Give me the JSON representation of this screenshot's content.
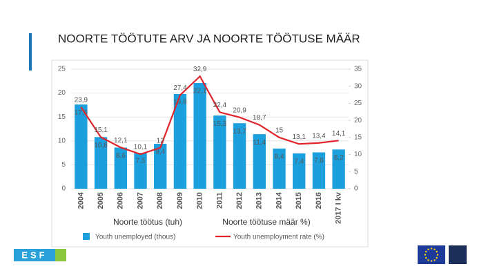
{
  "title": "NOORTE TÖÖTUTE ARV JA NOORTE TÖÖTUSE MÄÄR",
  "overlay_labels": [
    "Noorte töötus (tuh)",
    "Noorte töötuse määr %)"
  ],
  "logo_text": "ESF",
  "chart_data": {
    "type": "bar-line",
    "categories": [
      "2004",
      "2005",
      "2006",
      "2007",
      "2008",
      "2009",
      "2010",
      "2011",
      "2012",
      "2013",
      "2014",
      "2015",
      "2016",
      "2017 I kv"
    ],
    "series": [
      {
        "name": "Youth unemployed (thous)",
        "type": "bar",
        "color": "#1ca0dd",
        "axis": "y",
        "values": [
          17.6,
          10.8,
          8.6,
          7.5,
          9.4,
          19.8,
          22.1,
          15.3,
          13.7,
          11.4,
          8.4,
          7.4,
          7.6,
          8.2
        ],
        "value_labels": [
          "17,6",
          "10,8",
          "8,6",
          "7,5",
          "9,4",
          "19,8",
          "22,1",
          "15,3",
          "13,7",
          "11,4",
          "8,4",
          "7,4",
          "7,6",
          "8,2"
        ]
      },
      {
        "name": "Youth unemployment rate (%)",
        "type": "line",
        "color": "#e0242b",
        "axis": "y2",
        "values": [
          23.9,
          15.1,
          12.1,
          10.1,
          12,
          27.4,
          32.9,
          22.4,
          20.9,
          18.7,
          15,
          13.1,
          13.4,
          14.1
        ],
        "value_labels": [
          "23,9",
          "15,1",
          "12,1",
          "10,1",
          "12",
          "27,4",
          "32,9",
          "22,4",
          "20,9",
          "18,7",
          "15",
          "13,1",
          "13,4",
          "14,1"
        ]
      }
    ],
    "ylim": [
      0,
      25
    ],
    "yticks": [
      0,
      5,
      10,
      15,
      20,
      25
    ],
    "y2lim": [
      0,
      35
    ],
    "y2ticks": [
      0,
      5,
      10,
      15,
      20,
      25,
      30,
      35
    ],
    "grid": true
  }
}
